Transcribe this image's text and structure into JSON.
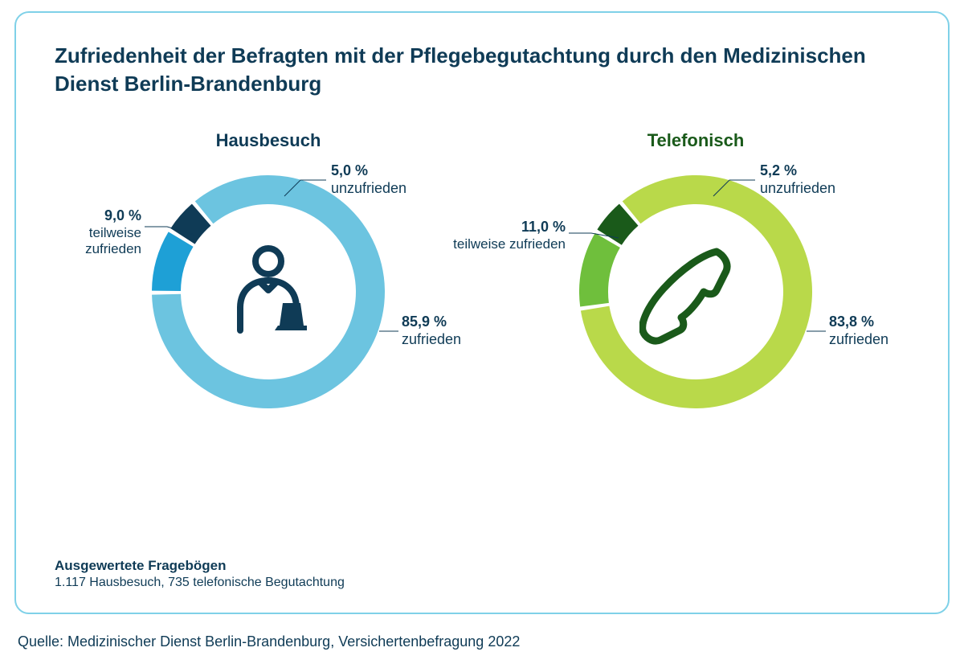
{
  "title": "Zufriedenheit der Befragten mit der Pflegebegutachtung durch den Medizinischen Dienst Berlin-Brandenburg",
  "charts": [
    {
      "key": "hausbesuch",
      "title": "Hausbesuch",
      "title_color": "#0f3b56",
      "icon": "person-laptop",
      "icon_color": "#0f3b56",
      "ring_thickness": 36,
      "outer_radius": 145,
      "segments": [
        {
          "label": "zufrieden",
          "pct_text": "85,9 %",
          "value": 85.9,
          "color": "#6cc4e0"
        },
        {
          "label": "teilweise zufrieden",
          "pct_text": "9,0 %",
          "value": 9.0,
          "color": "#1ea0d6"
        },
        {
          "label": "unzufrieden",
          "pct_text": "5,0 %",
          "value": 5.0,
          "color": "#0f3b56"
        }
      ],
      "start_angle": -40,
      "gap_deg": 2
    },
    {
      "key": "telefonisch",
      "title": "Telefonisch",
      "title_color": "#1a5a1a",
      "icon": "phone",
      "icon_color": "#1a5a1a",
      "ring_thickness": 36,
      "outer_radius": 145,
      "segments": [
        {
          "label": "zufrieden",
          "pct_text": "83,8 %",
          "value": 83.8,
          "color": "#b9d94a"
        },
        {
          "label": "teilweise zufrieden",
          "pct_text": "11,0 %",
          "value": 11.0,
          "color": "#6fbf3c"
        },
        {
          "label": "unzufrieden",
          "pct_text": "5,2 %",
          "value": 5.2,
          "color": "#1a5a1a"
        }
      ],
      "start_angle": -40,
      "gap_deg": 2
    }
  ],
  "footer": {
    "title": "Ausgewertete Fragebögen",
    "body": "1.117 Hausbesuch, 735 telefonische Begutachtung"
  },
  "source": "Quelle: Medizinischer Dienst Berlin-Brandenburg, Versichertenbefragung 2022",
  "colors": {
    "card_border": "#7fd1e8",
    "text": "#0f3b56"
  }
}
